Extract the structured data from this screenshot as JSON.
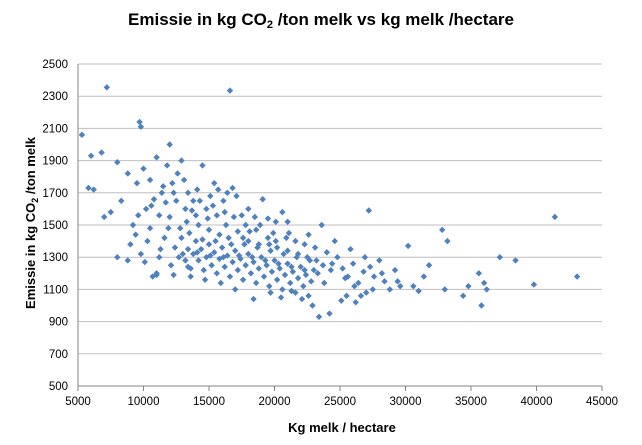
{
  "chart_data": {
    "type": "scatter",
    "title": {
      "pre": "Emissie in kg CO",
      "sub": "2",
      "post": " /ton melk vs kg melk /hectare"
    },
    "xlabel": "Kg melk / hectare",
    "ylabel": {
      "pre": "Emissie in kg CO",
      "sub": "2",
      "post": " /ton melk"
    },
    "xlim": [
      5000,
      45000
    ],
    "ylim": [
      500,
      2500
    ],
    "xticks": [
      5000,
      10000,
      15000,
      20000,
      25000,
      30000,
      35000,
      40000,
      45000
    ],
    "yticks": [
      500,
      700,
      900,
      1100,
      1300,
      1500,
      1700,
      1900,
      2100,
      2300,
      2500
    ],
    "grid": "horizontal",
    "legend": "none",
    "marker": "diamond",
    "color": "#4f81bd",
    "points": [
      [
        5300,
        2060
      ],
      [
        6000,
        1930
      ],
      [
        6800,
        1950
      ],
      [
        7200,
        2355
      ],
      [
        9700,
        2140
      ],
      [
        9800,
        2110
      ],
      [
        16600,
        2335
      ],
      [
        5800,
        1730
      ],
      [
        6200,
        1720
      ],
      [
        7000,
        1550
      ],
      [
        7500,
        1580
      ],
      [
        8000,
        1890
      ],
      [
        8300,
        1650
      ],
      [
        8800,
        1820
      ],
      [
        9000,
        1380
      ],
      [
        9200,
        1500
      ],
      [
        9500,
        1760
      ],
      [
        10000,
        1850
      ],
      [
        10200,
        1600
      ],
      [
        10500,
        1780
      ],
      [
        10800,
        1660
      ],
      [
        11000,
        1920
      ],
      [
        11200,
        1560
      ],
      [
        11500,
        1740
      ],
      [
        11800,
        1870
      ],
      [
        12000,
        2000
      ],
      [
        12300,
        1700
      ],
      [
        12600,
        1820
      ],
      [
        12900,
        1900
      ],
      [
        13100,
        1780
      ],
      [
        13400,
        1700
      ],
      [
        13800,
        1650
      ],
      [
        14100,
        1720
      ],
      [
        14500,
        1870
      ],
      [
        14800,
        1600
      ],
      [
        15100,
        1680
      ],
      [
        15400,
        1760
      ],
      [
        15700,
        1720
      ],
      [
        16100,
        1650
      ],
      [
        16400,
        1700
      ],
      [
        16800,
        1730
      ],
      [
        17100,
        1680
      ],
      [
        17500,
        1560
      ],
      [
        18000,
        1600
      ],
      [
        18500,
        1550
      ],
      [
        19100,
        1660
      ],
      [
        19500,
        1540
      ],
      [
        20100,
        1520
      ],
      [
        20600,
        1580
      ],
      [
        21000,
        1520
      ],
      [
        8000,
        1300
      ],
      [
        8800,
        1280
      ],
      [
        9400,
        1440
      ],
      [
        9800,
        1320
      ],
      [
        10300,
        1400
      ],
      [
        10700,
        1180
      ],
      [
        11000,
        1200
      ],
      [
        11300,
        1350
      ],
      [
        11600,
        1420
      ],
      [
        11900,
        1480
      ],
      [
        12100,
        1250
      ],
      [
        12400,
        1360
      ],
      [
        12700,
        1300
      ],
      [
        12900,
        1420
      ],
      [
        13200,
        1280
      ],
      [
        13400,
        1350
      ],
      [
        13600,
        1230
      ],
      [
        13800,
        1320
      ],
      [
        14000,
        1400
      ],
      [
        14200,
        1280
      ],
      [
        14400,
        1350
      ],
      [
        14600,
        1220
      ],
      [
        14800,
        1300
      ],
      [
        15000,
        1380
      ],
      [
        15200,
        1250
      ],
      [
        15400,
        1330
      ],
      [
        15600,
        1200
      ],
      [
        15800,
        1290
      ],
      [
        16000,
        1360
      ],
      [
        16200,
        1240
      ],
      [
        16400,
        1310
      ],
      [
        16600,
        1180
      ],
      [
        16800,
        1270
      ],
      [
        17000,
        1340
      ],
      [
        17200,
        1220
      ],
      [
        17400,
        1290
      ],
      [
        17600,
        1160
      ],
      [
        17800,
        1250
      ],
      [
        18000,
        1320
      ],
      [
        18200,
        1200
      ],
      [
        18400,
        1270
      ],
      [
        18600,
        1140
      ],
      [
        18800,
        1230
      ],
      [
        19000,
        1300
      ],
      [
        19200,
        1180
      ],
      [
        19400,
        1250
      ],
      [
        19600,
        1120
      ],
      [
        19800,
        1210
      ],
      [
        20000,
        1280
      ],
      [
        20200,
        1160
      ],
      [
        20400,
        1230
      ],
      [
        20600,
        1100
      ],
      [
        20800,
        1190
      ],
      [
        21000,
        1260
      ],
      [
        21200,
        1140
      ],
      [
        21400,
        1210
      ],
      [
        21600,
        1080
      ],
      [
        21800,
        1170
      ],
      [
        22000,
        1240
      ],
      [
        22200,
        1120
      ],
      [
        22400,
        1190
      ],
      [
        22600,
        1060
      ],
      [
        22800,
        1150
      ],
      [
        23000,
        1220
      ],
      [
        10500,
        1480
      ],
      [
        11200,
        1300
      ],
      [
        12000,
        1550
      ],
      [
        12800,
        1480
      ],
      [
        13500,
        1450
      ],
      [
        14200,
        1500
      ],
      [
        15000,
        1470
      ],
      [
        15800,
        1440
      ],
      [
        16500,
        1420
      ],
      [
        17200,
        1460
      ],
      [
        18000,
        1400
      ],
      [
        18800,
        1380
      ],
      [
        19500,
        1420
      ],
      [
        20200,
        1360
      ],
      [
        21000,
        1340
      ],
      [
        21800,
        1320
      ],
      [
        22500,
        1300
      ],
      [
        23200,
        1280
      ],
      [
        23600,
        1500
      ],
      [
        24000,
        1330
      ],
      [
        24400,
        1260
      ],
      [
        24800,
        1300
      ],
      [
        25200,
        1230
      ],
      [
        25600,
        1180
      ],
      [
        26000,
        1260
      ],
      [
        26400,
        1140
      ],
      [
        26800,
        1210
      ],
      [
        27200,
        1590
      ],
      [
        27600,
        1180
      ],
      [
        28000,
        1280
      ],
      [
        28400,
        1150
      ],
      [
        28800,
        1100
      ],
      [
        29200,
        1220
      ],
      [
        29600,
        1120
      ],
      [
        30200,
        1370
      ],
      [
        30600,
        1120
      ],
      [
        31000,
        1090
      ],
      [
        31400,
        1180
      ],
      [
        31800,
        1250
      ],
      [
        32800,
        1470
      ],
      [
        33200,
        1400
      ],
      [
        33000,
        1100
      ],
      [
        34400,
        1060
      ],
      [
        34800,
        1120
      ],
      [
        35600,
        1200
      ],
      [
        35800,
        1000
      ],
      [
        36000,
        1140
      ],
      [
        36200,
        1100
      ],
      [
        37200,
        1300
      ],
      [
        38400,
        1280
      ],
      [
        39800,
        1130
      ],
      [
        41400,
        1550
      ],
      [
        43100,
        1180
      ],
      [
        23400,
        930
      ],
      [
        23800,
        1140
      ],
      [
        24200,
        950
      ],
      [
        25100,
        1030
      ],
      [
        25500,
        1060
      ],
      [
        26200,
        1020
      ],
      [
        26600,
        1060
      ],
      [
        27000,
        1080
      ],
      [
        27500,
        1100
      ],
      [
        18400,
        1040
      ],
      [
        19700,
        1080
      ],
      [
        20500,
        1050
      ],
      [
        21300,
        1090
      ],
      [
        22100,
        1040
      ],
      [
        22900,
        1000
      ],
      [
        17000,
        1100
      ],
      [
        15900,
        1140
      ],
      [
        14700,
        1160
      ],
      [
        13600,
        1180
      ],
      [
        12300,
        1190
      ],
      [
        11000,
        1190
      ],
      [
        13200,
        1600
      ],
      [
        14000,
        1560
      ],
      [
        15300,
        1620
      ],
      [
        16200,
        1580
      ],
      [
        17800,
        1500
      ],
      [
        18600,
        1470
      ],
      [
        19900,
        1450
      ],
      [
        20900,
        1420
      ],
      [
        21600,
        1400
      ],
      [
        22300,
        1380
      ],
      [
        23100,
        1360
      ],
      [
        24600,
        1400
      ],
      [
        25800,
        1350
      ],
      [
        26900,
        1300
      ],
      [
        13000,
        1320
      ],
      [
        13400,
        1240
      ],
      [
        14100,
        1330
      ],
      [
        14500,
        1410
      ],
      [
        15100,
        1310
      ],
      [
        15500,
        1400
      ],
      [
        16100,
        1300
      ],
      [
        16700,
        1380
      ],
      [
        17300,
        1310
      ],
      [
        17700,
        1380
      ],
      [
        18300,
        1300
      ],
      [
        18700,
        1360
      ],
      [
        19300,
        1280
      ],
      [
        19700,
        1340
      ],
      [
        20300,
        1260
      ],
      [
        20700,
        1320
      ],
      [
        21300,
        1240
      ],
      [
        21700,
        1300
      ],
      [
        22300,
        1220
      ],
      [
        22700,
        1280
      ],
      [
        23300,
        1200
      ],
      [
        9600,
        1560
      ],
      [
        10100,
        1270
      ],
      [
        10600,
        1620
      ],
      [
        11400,
        1700
      ],
      [
        11700,
        1640
      ],
      [
        12200,
        1760
      ],
      [
        12500,
        1650
      ],
      [
        13300,
        1520
      ],
      [
        13700,
        1590
      ],
      [
        14300,
        1650
      ],
      [
        14900,
        1540
      ],
      [
        15600,
        1560
      ],
      [
        16300,
        1500
      ],
      [
        16900,
        1550
      ],
      [
        17600,
        1420
      ],
      [
        18100,
        1460
      ],
      [
        18900,
        1500
      ],
      [
        19600,
        1380
      ],
      [
        20100,
        1400
      ],
      [
        21100,
        1450
      ],
      [
        22600,
        1440
      ],
      [
        23700,
        1250
      ],
      [
        24300,
        1220
      ],
      [
        25400,
        1170
      ],
      [
        26100,
        1120
      ],
      [
        27300,
        1240
      ],
      [
        28200,
        1200
      ],
      [
        29400,
        1150
      ]
    ]
  }
}
